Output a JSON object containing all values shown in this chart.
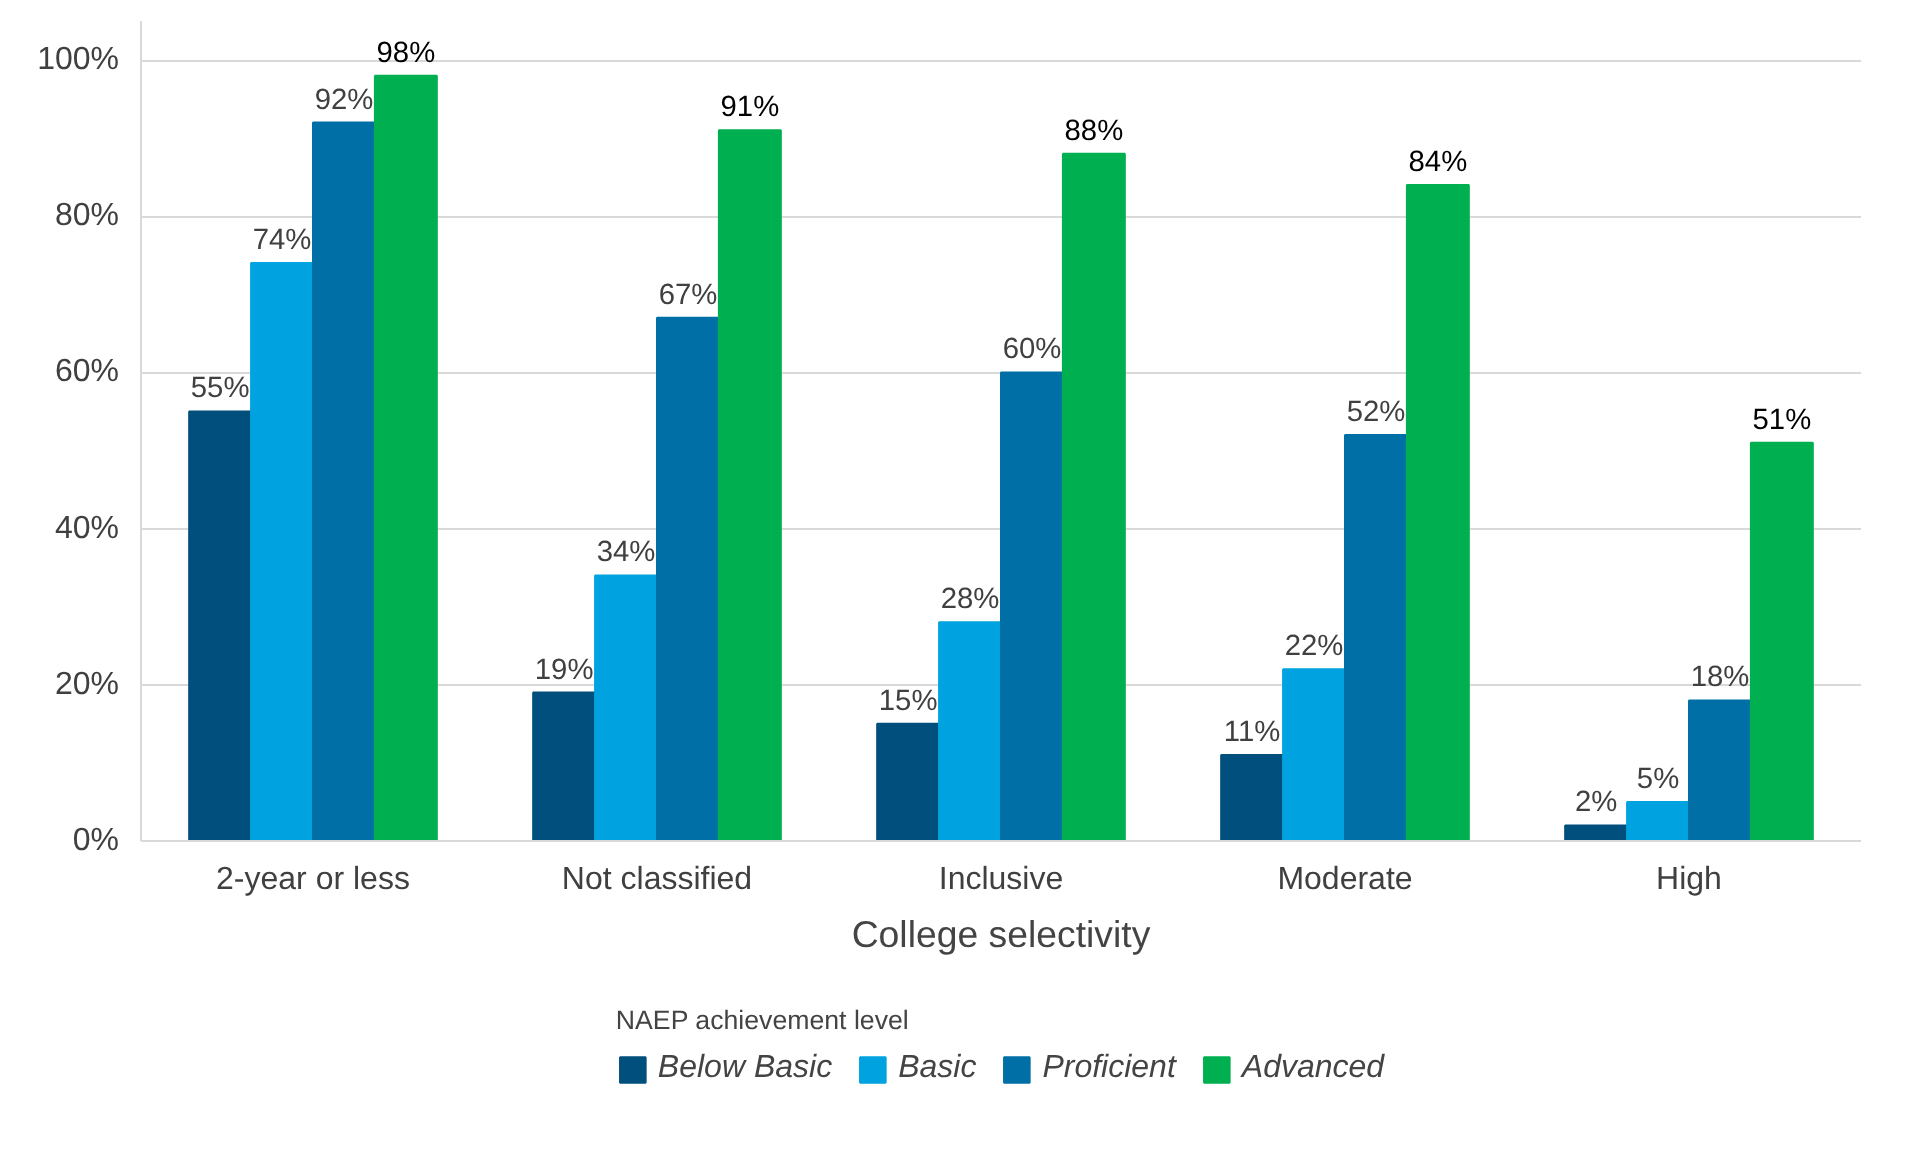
{
  "chart_data": {
    "type": "bar",
    "xlabel": "College selectivity",
    "legend_title": "NAEP achievement level",
    "categories": [
      "2-year or less",
      "Not classified",
      "Inclusive",
      "Moderate",
      "High"
    ],
    "series": [
      {
        "name": "Below Basic",
        "color": "#004f7c",
        "values": [
          55,
          19,
          15,
          11,
          2
        ],
        "value_labels": [
          "55%",
          "19%",
          "15%",
          "11%",
          "2%"
        ]
      },
      {
        "name": "Basic",
        "color": "#00a3e0",
        "values": [
          74,
          34,
          28,
          22,
          5
        ],
        "value_labels": [
          "74%",
          "34%",
          "28%",
          "22%",
          "5%"
        ]
      },
      {
        "name": "Proficient",
        "color": "#006fa6",
        "values": [
          92,
          67,
          60,
          52,
          18
        ],
        "value_labels": [
          "92%",
          "67%",
          "60%",
          "52%",
          "18%"
        ]
      },
      {
        "name": "Advanced",
        "color": "#00b050",
        "values": [
          98,
          91,
          88,
          84,
          51
        ],
        "value_labels": [
          "98%",
          "91%",
          "88%",
          "84%",
          "51%"
        ]
      }
    ],
    "ylim": [
      0,
      105
    ],
    "yticks": [
      {
        "value": 0,
        "label": "0%"
      },
      {
        "value": 20,
        "label": "20%"
      },
      {
        "value": 40,
        "label": "40%"
      },
      {
        "value": 60,
        "label": "60%"
      },
      {
        "value": 80,
        "label": "80%"
      },
      {
        "value": 100,
        "label": "100%"
      }
    ],
    "grid": "y",
    "legend": "bottom"
  }
}
